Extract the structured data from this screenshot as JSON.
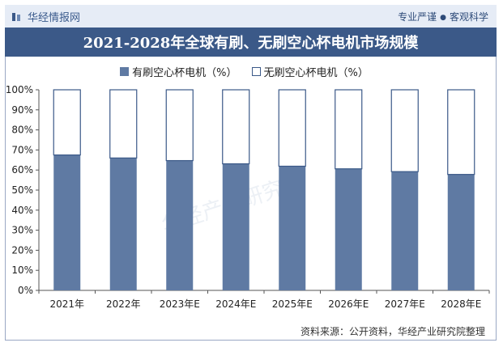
{
  "header": {
    "brand": "华经情报网",
    "slogan_left": "专业严谨",
    "slogan_right": "客观科学"
  },
  "chart_data": {
    "type": "bar",
    "stacked": true,
    "title": "2021-2028年全球有刷、无刷空心杯电机市场规模",
    "categories": [
      "2021年",
      "2022年",
      "2023年E",
      "2024年E",
      "2025年E",
      "2026年E",
      "2027年E",
      "2028年E"
    ],
    "series": [
      {
        "name": "有刷空心杯电机（%）",
        "color": "#5f7aa3",
        "values": [
          67.5,
          66,
          64.7,
          63.1,
          61.9,
          60.6,
          59.2,
          57.8
        ]
      },
      {
        "name": "无刷空心杯电机（%）",
        "color": "#ffffff",
        "values": [
          32.5,
          34,
          35.3,
          36.9,
          38.1,
          39.4,
          40.8,
          42.2
        ]
      }
    ],
    "y_ticks": [
      "0%",
      "10%",
      "20%",
      "30%",
      "40%",
      "50%",
      "60%",
      "70%",
      "80%",
      "90%",
      "100%"
    ],
    "ylim": [
      0,
      100
    ],
    "legend": "top",
    "grid": false
  },
  "watermark": "华经产业研究院",
  "source": "资料来源：公开资料，华经产业研究院整理"
}
